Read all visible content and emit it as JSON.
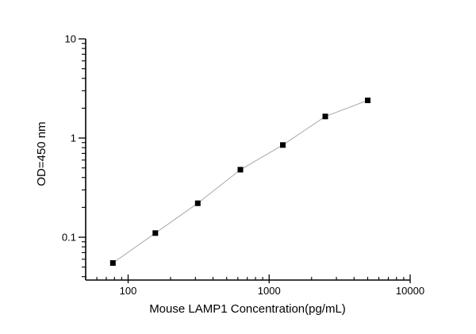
{
  "figure": {
    "background": "#ffffff",
    "axis_color": "#000000",
    "tick_label_color": "#000000"
  },
  "chart_data": {
    "type": "line",
    "title": "",
    "xlabel": "Mouse LAMP1 Concentration(pg/mL)",
    "ylabel": "OD=450 nm",
    "xscale": "log",
    "yscale": "log",
    "xlim": [
      50,
      10000
    ],
    "ylim": [
      0.037,
      10
    ],
    "x_major_ticks": [
      100,
      1000,
      10000
    ],
    "x_tick_labels": [
      "100",
      "1000",
      "10000"
    ],
    "y_major_ticks": [
      0.1,
      1,
      10
    ],
    "y_tick_labels": [
      "0.1",
      "1",
      "10"
    ],
    "grid": false,
    "legend": false,
    "series": [
      {
        "marker": "filled-square",
        "marker_color": "#000000",
        "line_color": "#a8a8a8",
        "points": [
          {
            "x": 78,
            "y": 0.055
          },
          {
            "x": 156,
            "y": 0.11
          },
          {
            "x": 312,
            "y": 0.22
          },
          {
            "x": 625,
            "y": 0.48
          },
          {
            "x": 1250,
            "y": 0.85
          },
          {
            "x": 2500,
            "y": 1.65
          },
          {
            "x": 5000,
            "y": 2.4
          }
        ]
      }
    ]
  }
}
